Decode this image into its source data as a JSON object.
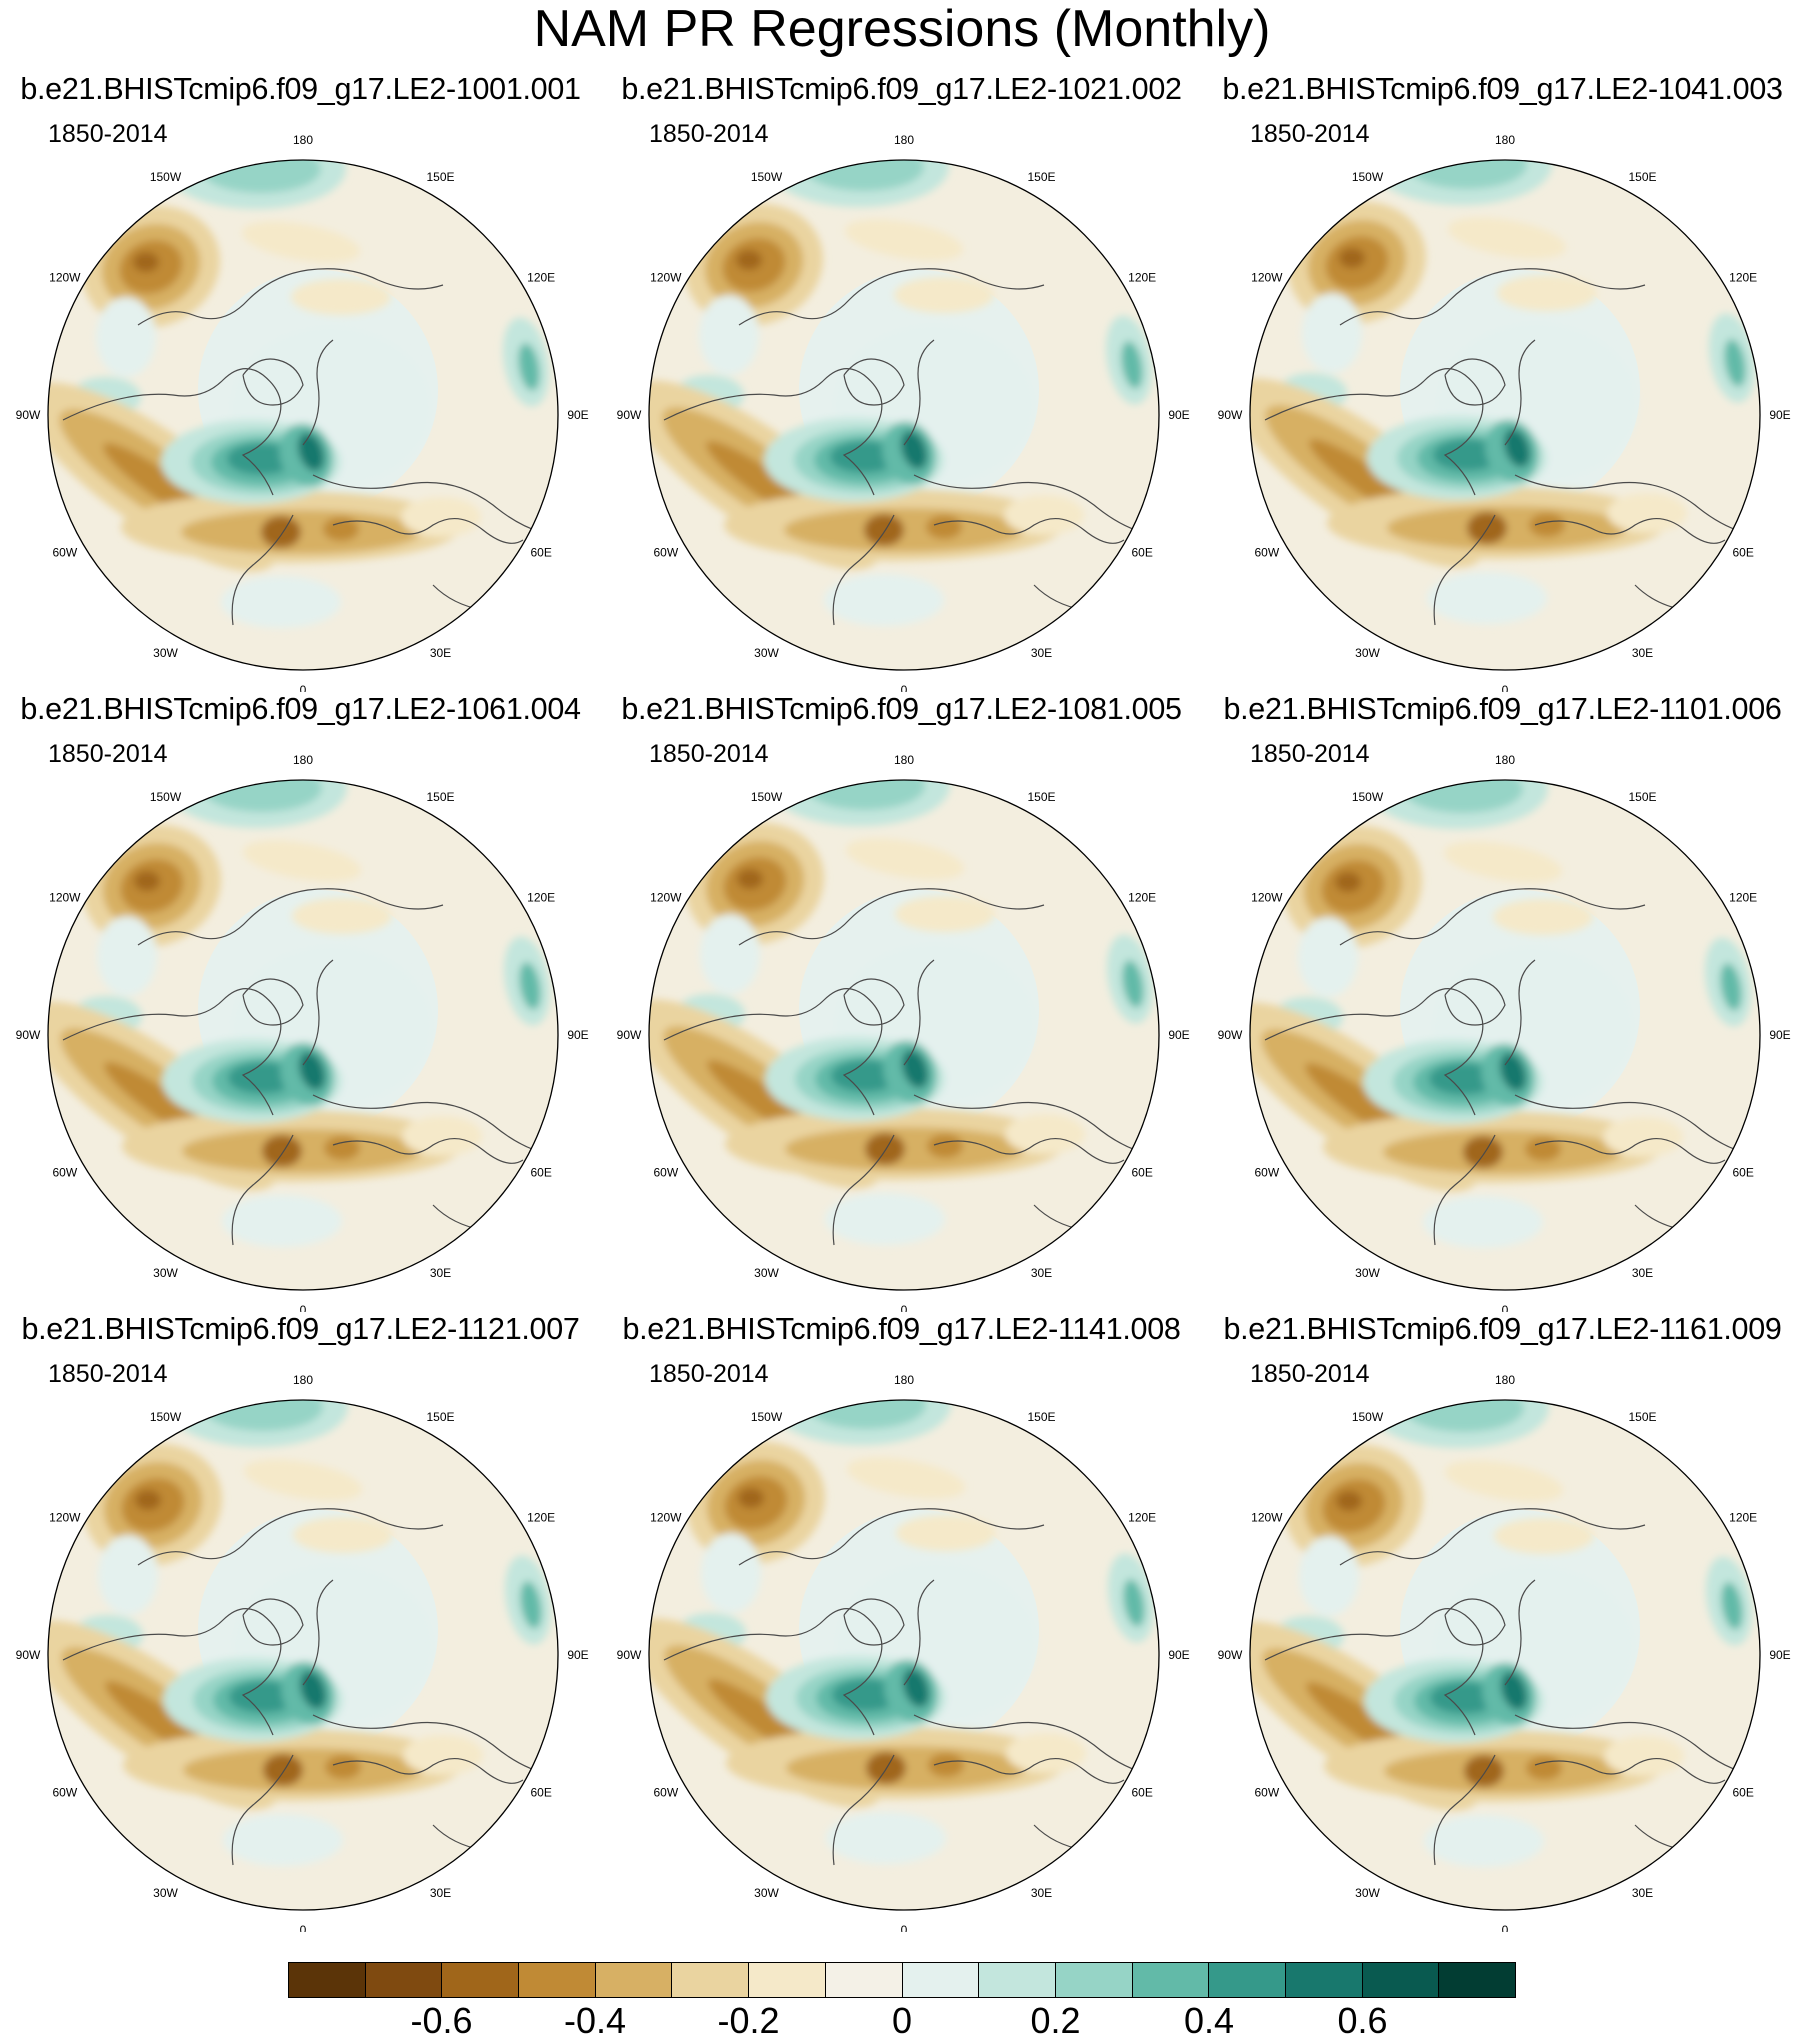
{
  "title": "NAM PR Regressions (Monthly)",
  "period": "1850-2014",
  "lon_labels": [
    "180",
    "150E",
    "120E",
    "90E",
    "60E",
    "30E",
    "0",
    "30W",
    "60W",
    "90W",
    "120W",
    "150W"
  ],
  "panels": [
    {
      "name": "b.e21.BHISTcmip6.f09_g17.LE2-1001.001"
    },
    {
      "name": "b.e21.BHISTcmip6.f09_g17.LE2-1021.002"
    },
    {
      "name": "b.e21.BHISTcmip6.f09_g17.LE2-1041.003"
    },
    {
      "name": "b.e21.BHISTcmip6.f09_g17.LE2-1061.004"
    },
    {
      "name": "b.e21.BHISTcmip6.f09_g17.LE2-1081.005"
    },
    {
      "name": "b.e21.BHISTcmip6.f09_g17.LE2-1101.006"
    },
    {
      "name": "b.e21.BHISTcmip6.f09_g17.LE2-1121.007"
    },
    {
      "name": "b.e21.BHISTcmip6.f09_g17.LE2-1141.008"
    },
    {
      "name": "b.e21.BHISTcmip6.f09_g17.LE2-1161.009"
    }
  ],
  "colorbar": {
    "colors": [
      "#5b3408",
      "#7f4a10",
      "#a0661a",
      "#c08a35",
      "#d7b064",
      "#ead4a0",
      "#f5e9c9",
      "#f4f1e7",
      "#e4f1ee",
      "#c3e6dd",
      "#96d4c6",
      "#62baa8",
      "#35998a",
      "#18786d",
      "#095a50",
      "#023d33"
    ],
    "labels": [
      "-0.6",
      "-0.4",
      "-0.2",
      "0",
      "0.2",
      "0.4",
      "0.6"
    ]
  }
}
